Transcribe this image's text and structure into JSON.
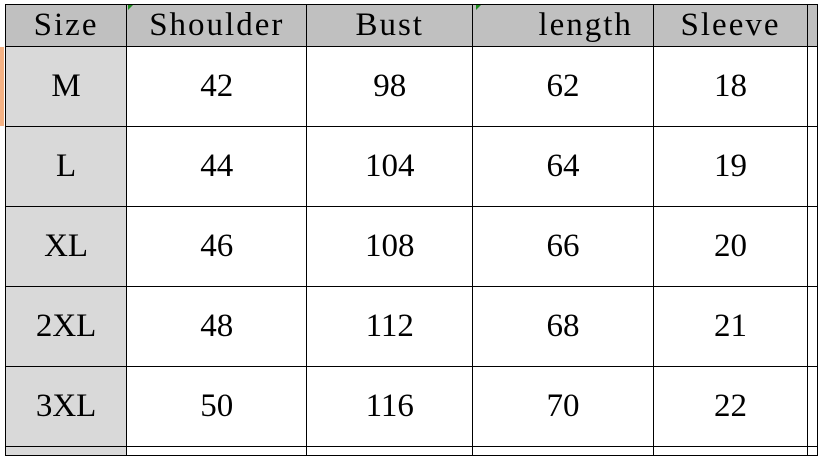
{
  "table": {
    "headers": [
      "Size",
      "Shoulder",
      "Bust",
      "length",
      "Sleeve"
    ],
    "rows": [
      [
        "M",
        "42",
        "98",
        "62",
        "18"
      ],
      [
        "L",
        "44",
        "104",
        "64",
        "19"
      ],
      [
        "XL",
        "46",
        "108",
        "66",
        "20"
      ],
      [
        "2XL",
        "48",
        "112",
        "68",
        "21"
      ],
      [
        "3XL",
        "50",
        "116",
        "70",
        "22"
      ]
    ]
  },
  "colors": {
    "header_bg": "#c0c0c0",
    "size_col_bg": "#d9d9d9",
    "selected_row_marker": "#f4b183"
  }
}
